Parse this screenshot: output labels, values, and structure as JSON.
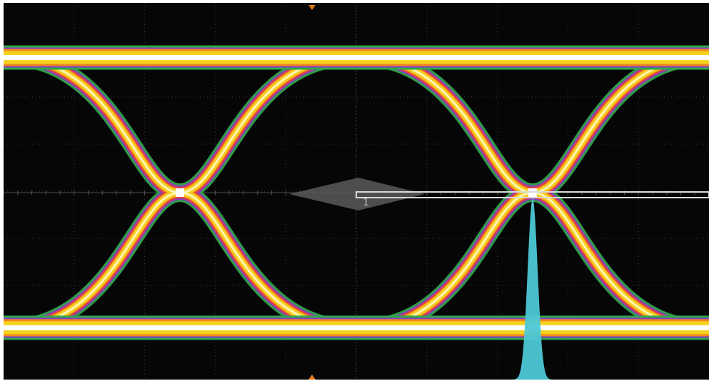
{
  "chart_data": {
    "type": "eye-diagram",
    "title": "",
    "xlabel": "",
    "ylabel": "",
    "grid": true,
    "divisions": {
      "x": 10,
      "y": 8
    },
    "colors": {
      "background": "#060606",
      "grid": "#3a3a3a",
      "histogram": "#4cc8d6",
      "cursor": "#d8d8d8",
      "trigger_marker": "#e07a1a",
      "intensity_palette": [
        "#2fa84a",
        "#8a3fc0",
        "#e03a4a",
        "#f08a1a",
        "#f5d21e",
        "#fff7c0"
      ]
    },
    "eye": {
      "crossing_points_div": [
        2.5,
        7.5
      ],
      "high_level_div": 2.9,
      "low_level_div": -2.9,
      "mid_level_div": 0
    },
    "reference_label": "1",
    "histogram_center_div": 7.5
  }
}
